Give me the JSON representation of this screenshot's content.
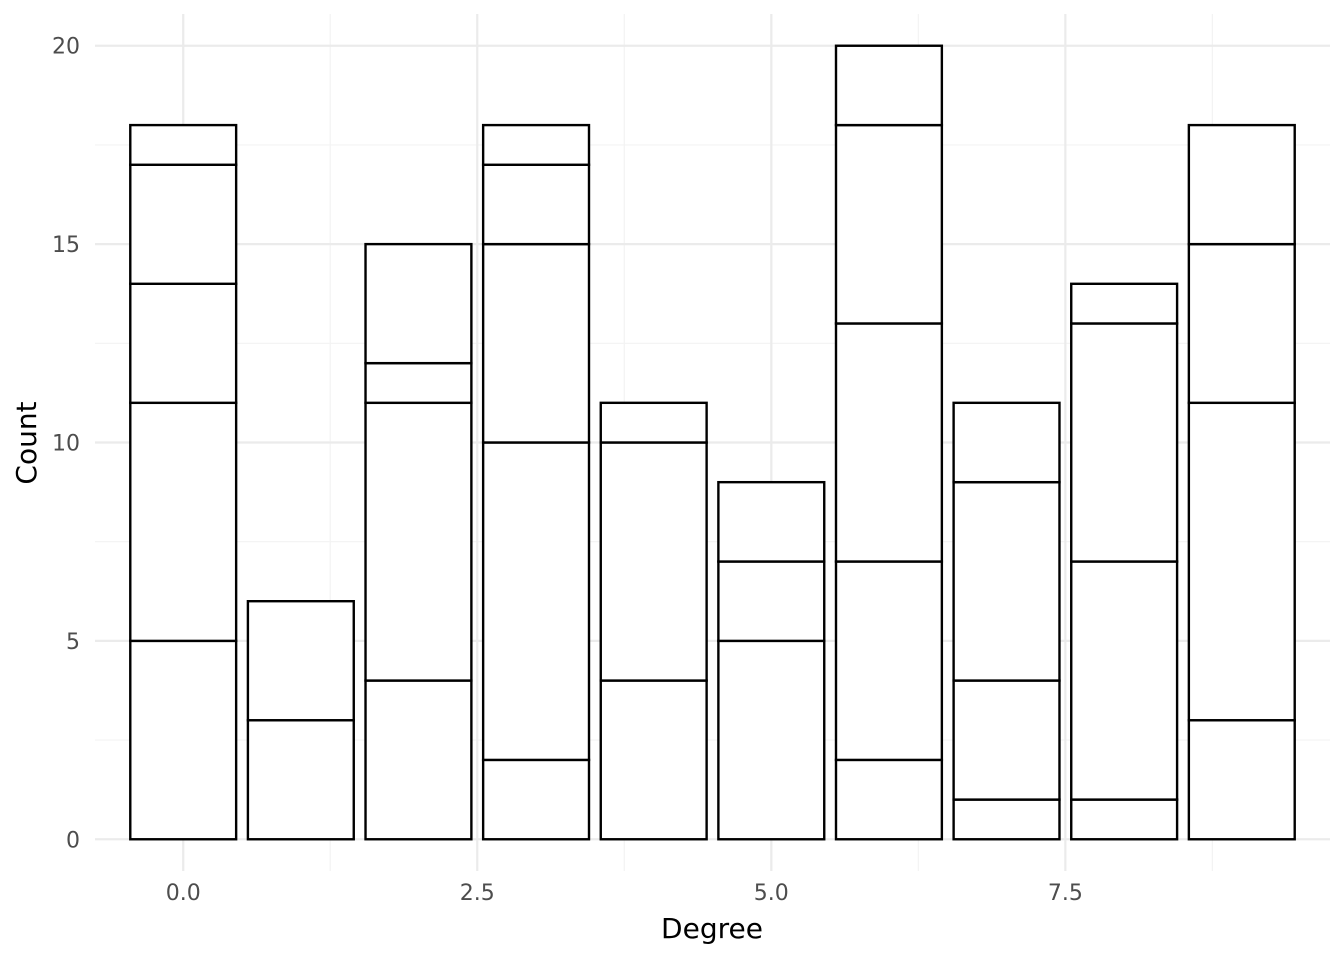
{
  "chart_data": {
    "type": "bar",
    "stacked": true,
    "title": "",
    "xlabel": "Degree",
    "ylabel": "Count",
    "xlim": [
      -0.75,
      9.75
    ],
    "ylim": [
      -0.8,
      20.8
    ],
    "x_ticks": [
      0.0,
      2.5,
      5.0,
      7.5
    ],
    "x_tick_labels": [
      "0.0",
      "2.5",
      "5.0",
      "7.5"
    ],
    "y_ticks": [
      0,
      5,
      10,
      15,
      20
    ],
    "y_tick_labels": [
      "0",
      "5",
      "10",
      "15",
      "20"
    ],
    "grid": true,
    "legend": "none",
    "bar_fill": "#ffffff",
    "bar_stroke": "#000000",
    "grid_major_color": "#ebebeb",
    "grid_minor_color": "#f3f3f3",
    "bars": [
      {
        "x": 0,
        "segments": [
          5,
          6,
          3,
          3,
          1
        ],
        "total": 18
      },
      {
        "x": 1,
        "segments": [
          3,
          3
        ],
        "total": 6
      },
      {
        "x": 2,
        "segments": [
          4,
          7,
          1,
          3
        ],
        "total": 15
      },
      {
        "x": 3,
        "segments": [
          2,
          8,
          5,
          2,
          1
        ],
        "total": 18
      },
      {
        "x": 4,
        "segments": [
          4,
          6,
          1
        ],
        "total": 11
      },
      {
        "x": 5,
        "segments": [
          5,
          2,
          2
        ],
        "total": 9
      },
      {
        "x": 6,
        "segments": [
          2,
          5,
          6,
          5,
          2
        ],
        "total": 20
      },
      {
        "x": 7,
        "segments": [
          1,
          3,
          5,
          2
        ],
        "total": 11
      },
      {
        "x": 8,
        "segments": [
          1,
          6,
          6,
          1
        ],
        "total": 14
      },
      {
        "x": 9,
        "segments": [
          3,
          8,
          4,
          3
        ],
        "total": 18
      }
    ]
  }
}
